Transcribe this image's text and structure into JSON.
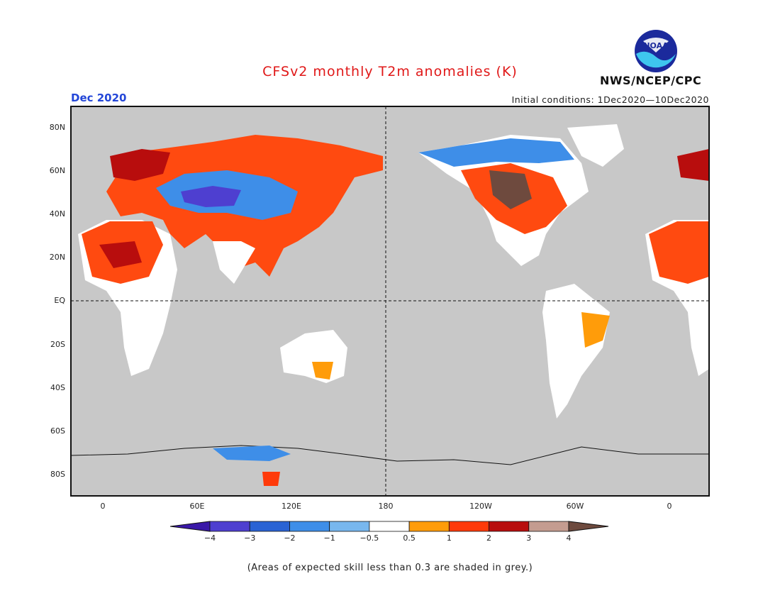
{
  "title": "CFSv2 monthly T2m anomalies (K)",
  "month": "Dec 2020",
  "initial_conditions": "Initial conditions: 1Dec2020—10Dec2020",
  "agency": "NWS/NCEP/CPC",
  "logo_text": "NOAA",
  "footnote": "(Areas of expected skill less than 0.3 are shaded in grey.)",
  "lat_labels": [
    "80N",
    "60N",
    "40N",
    "20N",
    "EQ",
    "20S",
    "40S",
    "60S",
    "80S"
  ],
  "lon_labels": [
    "0",
    "60E",
    "120E",
    "180",
    "120W",
    "60W",
    "0"
  ],
  "colorbar": {
    "labels": [
      "−4",
      "−3",
      "−2",
      "−1",
      "−0.5",
      "0.5",
      "1",
      "2",
      "3",
      "4"
    ],
    "colors": [
      "#3a18a8",
      "#4e3fd0",
      "#2a63d4",
      "#3e8ee8",
      "#78b7ee",
      "#ffffff",
      "#ff9c0a",
      "#ff3a0a",
      "#b80d0d",
      "#c49c90",
      "#6e4a3e"
    ]
  },
  "colors": {
    "background": "#c8c8c8",
    "title": "#e01818",
    "month": "#2346d8"
  }
}
